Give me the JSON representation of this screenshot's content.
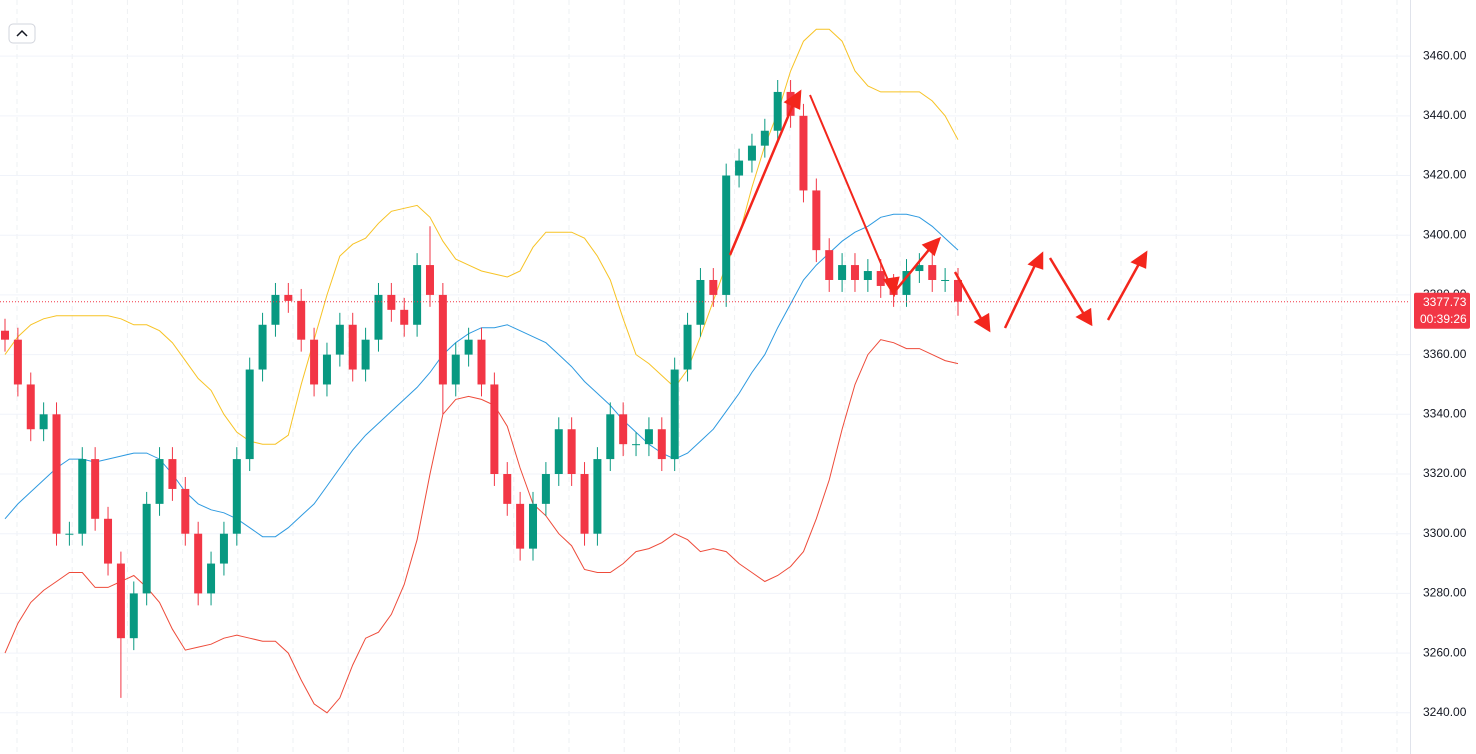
{
  "chart_data": {
    "type": "candlestick",
    "up_color": "#089981",
    "down_color": "#f23645",
    "open": [
      3368,
      3365,
      3350,
      3335,
      3340,
      3300,
      3300,
      3325,
      3305,
      3290,
      3265,
      3280,
      3310,
      3325,
      3315,
      3300,
      3280,
      3290,
      3300,
      3325,
      3355,
      3370,
      3380,
      3378,
      3365,
      3350,
      3360,
      3370,
      3355,
      3365,
      3380,
      3375,
      3370,
      3390,
      3380,
      3350,
      3360,
      3365,
      3350,
      3320,
      3310,
      3295,
      3310,
      3320,
      3335,
      3320,
      3300,
      3325,
      3340,
      3330,
      3330,
      3335,
      3325,
      3355,
      3370,
      3385,
      3380,
      3420,
      3425,
      3430,
      3435,
      3448,
      3440,
      3415,
      3395,
      3385,
      3390,
      3385,
      3388,
      3383,
      3380,
      3388,
      3390,
      3385,
      3385
    ],
    "high": [
      3372,
      3369,
      3354,
      3344,
      3344,
      3304,
      3329,
      3329,
      3309,
      3294,
      3284,
      3314,
      3329,
      3329,
      3319,
      3304,
      3294,
      3304,
      3329,
      3359,
      3374,
      3384,
      3384,
      3382,
      3369,
      3364,
      3374,
      3374,
      3369,
      3384,
      3384,
      3379,
      3394,
      3403,
      3384,
      3364,
      3369,
      3369,
      3354,
      3324,
      3314,
      3314,
      3324,
      3339,
      3339,
      3324,
      3329,
      3344,
      3344,
      3334,
      3339,
      3339,
      3359,
      3374,
      3389,
      3389,
      3424,
      3429,
      3434,
      3439,
      3452,
      3452,
      3444,
      3419,
      3399,
      3394,
      3394,
      3392,
      3392,
      3387,
      3392,
      3394,
      3394,
      3389,
      3389
    ],
    "low": [
      3361,
      3346,
      3331,
      3331,
      3296,
      3296,
      3296,
      3301,
      3286,
      3245,
      3261,
      3276,
      3306,
      3311,
      3296,
      3276,
      3276,
      3286,
      3296,
      3321,
      3351,
      3366,
      3374,
      3361,
      3346,
      3346,
      3356,
      3351,
      3351,
      3361,
      3371,
      3366,
      3366,
      3376,
      3340,
      3346,
      3356,
      3346,
      3316,
      3306,
      3291,
      3291,
      3306,
      3316,
      3316,
      3296,
      3296,
      3321,
      3326,
      3326,
      3326,
      3321,
      3321,
      3351,
      3366,
      3376,
      3376,
      3416,
      3421,
      3426,
      3431,
      3436,
      3411,
      3391,
      3381,
      3381,
      3381,
      3381,
      3379,
      3376,
      3376,
      3384,
      3381,
      3381,
      3373
    ],
    "close": [
      3365,
      3350,
      3335,
      3340,
      3300,
      3300,
      3325,
      3305,
      3290,
      3265,
      3280,
      3310,
      3325,
      3315,
      3300,
      3280,
      3290,
      3300,
      3325,
      3355,
      3370,
      3380,
      3378,
      3365,
      3350,
      3360,
      3370,
      3355,
      3365,
      3380,
      3375,
      3370,
      3390,
      3380,
      3350,
      3360,
      3365,
      3350,
      3320,
      3310,
      3295,
      3310,
      3320,
      3335,
      3320,
      3300,
      3325,
      3340,
      3330,
      3330,
      3335,
      3325,
      3355,
      3370,
      3385,
      3380,
      3420,
      3425,
      3430,
      3435,
      3448,
      3440,
      3415,
      3395,
      3385,
      3390,
      3385,
      3388,
      3383,
      3380,
      3388,
      3390,
      3385,
      3385,
      3377.73
    ],
    "bands": [
      {
        "color": "#f7c325",
        "values": [
          3360,
          3366,
          3370,
          3372,
          3373,
          3373,
          3373,
          3373,
          3373,
          3372,
          3370,
          3370,
          3368,
          3364,
          3358,
          3352,
          3348,
          3340,
          3334,
          3331,
          3330,
          3330,
          3333,
          3350,
          3365,
          3380,
          3393,
          3397,
          3399,
          3404,
          3408,
          3409,
          3410,
          3406,
          3398,
          3392,
          3390,
          3388,
          3387,
          3386,
          3388,
          3396,
          3401,
          3401,
          3401,
          3399,
          3393,
          3385,
          3372,
          3360,
          3357,
          3353,
          3349,
          3355,
          3366,
          3378,
          3390,
          3400,
          3416,
          3430,
          3441,
          3455,
          3465,
          3469,
          3469,
          3465,
          3455,
          3450,
          3448,
          3448,
          3448,
          3448,
          3445,
          3440,
          3432
        ]
      },
      {
        "color": "#2e9ae0",
        "values": [
          3305,
          3310,
          3314,
          3318,
          3322,
          3325,
          3325,
          3324,
          3325,
          3326,
          3327,
          3327,
          3325,
          3320,
          3314,
          3310,
          3308,
          3307,
          3305,
          3302,
          3299,
          3299,
          3302,
          3306,
          3310,
          3316,
          3322,
          3328,
          3333,
          3337,
          3341,
          3345,
          3349,
          3354,
          3360,
          3364,
          3367,
          3369,
          3369,
          3370,
          3368,
          3366,
          3364,
          3360,
          3356,
          3351,
          3347,
          3343,
          3338,
          3334,
          3330,
          3327,
          3325,
          3327,
          3331,
          3335,
          3341,
          3347,
          3354,
          3360,
          3369,
          3377,
          3385,
          3390,
          3394,
          3398,
          3401,
          3403,
          3406,
          3407,
          3407,
          3406,
          3403,
          3399,
          3395
        ]
      },
      {
        "color": "#ee4b3a",
        "values": [
          3260,
          3270,
          3277,
          3281,
          3284,
          3287,
          3287,
          3282,
          3282,
          3284,
          3286,
          3282,
          3277,
          3268,
          3261,
          3262,
          3263,
          3265,
          3266,
          3265,
          3264,
          3264,
          3260,
          3251,
          3243,
          3240,
          3245,
          3256,
          3265,
          3267,
          3273,
          3283,
          3298,
          3320,
          3340,
          3345,
          3346,
          3345,
          3343,
          3336,
          3322,
          3310,
          3306,
          3300,
          3296,
          3288,
          3287,
          3287,
          3290,
          3294,
          3295,
          3297,
          3300,
          3298,
          3294,
          3295,
          3294,
          3290,
          3287,
          3284,
          3286,
          3289,
          3294,
          3305,
          3318,
          3335,
          3350,
          3360,
          3365,
          3364,
          3362,
          3362,
          3360,
          3358,
          3357
        ]
      }
    ],
    "ylim": [
      3226.2,
      3478.8
    ],
    "yticks": [
      {
        "value": 3240,
        "label": "3240.00"
      },
      {
        "value": 3260,
        "label": "3260.00"
      },
      {
        "value": 3280,
        "label": "3280.00"
      },
      {
        "value": 3300,
        "label": "3300.00"
      },
      {
        "value": 3320,
        "label": "3320.00"
      },
      {
        "value": 3340,
        "label": "3340.00"
      },
      {
        "value": 3360,
        "label": "3360.00"
      },
      {
        "value": 3380,
        "label": "3380.00"
      },
      {
        "value": 3400,
        "label": "3400.00"
      },
      {
        "value": 3420,
        "label": "3420.00"
      },
      {
        "value": 3440,
        "label": "3440.00"
      },
      {
        "value": 3460,
        "label": "3460.00"
      }
    ],
    "current_price": 3377.73,
    "countdown": "00:39:26",
    "grid": true
  }
}
